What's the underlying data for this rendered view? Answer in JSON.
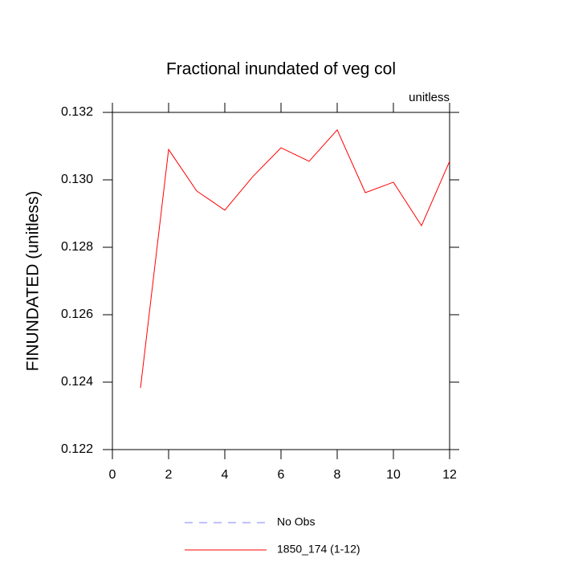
{
  "chart_data": {
    "type": "line",
    "title": "Fractional inundated of veg col",
    "annotation": "unitless",
    "y_label": "FINUNDATED  (unitless)",
    "x": [
      1,
      2,
      3,
      4,
      5,
      6,
      7,
      8,
      9,
      10,
      11,
      12
    ],
    "series": [
      {
        "name": "No Obs",
        "color": "#8080ff",
        "dashed": true,
        "values": [
          null,
          null,
          null,
          null,
          null,
          null,
          null,
          null,
          null,
          null,
          null,
          null
        ]
      },
      {
        "name": "1850_174 (1-12)",
        "color": "#ff0000",
        "dashed": false,
        "values": [
          0.12383,
          0.1309,
          0.12967,
          0.1291,
          0.1301,
          0.13095,
          0.13055,
          0.13148,
          0.12962,
          0.12993,
          0.12864,
          0.13055
        ]
      }
    ],
    "xlim": [
      0,
      12
    ],
    "xticks": [
      0,
      2,
      4,
      6,
      8,
      10,
      12
    ],
    "ylim": [
      0.122,
      0.132
    ],
    "yticks": [
      0.122,
      0.124,
      0.126,
      0.128,
      {
        "value": 0.13,
        "label": "0.130"
      },
      0.132
    ],
    "grid": false
  }
}
